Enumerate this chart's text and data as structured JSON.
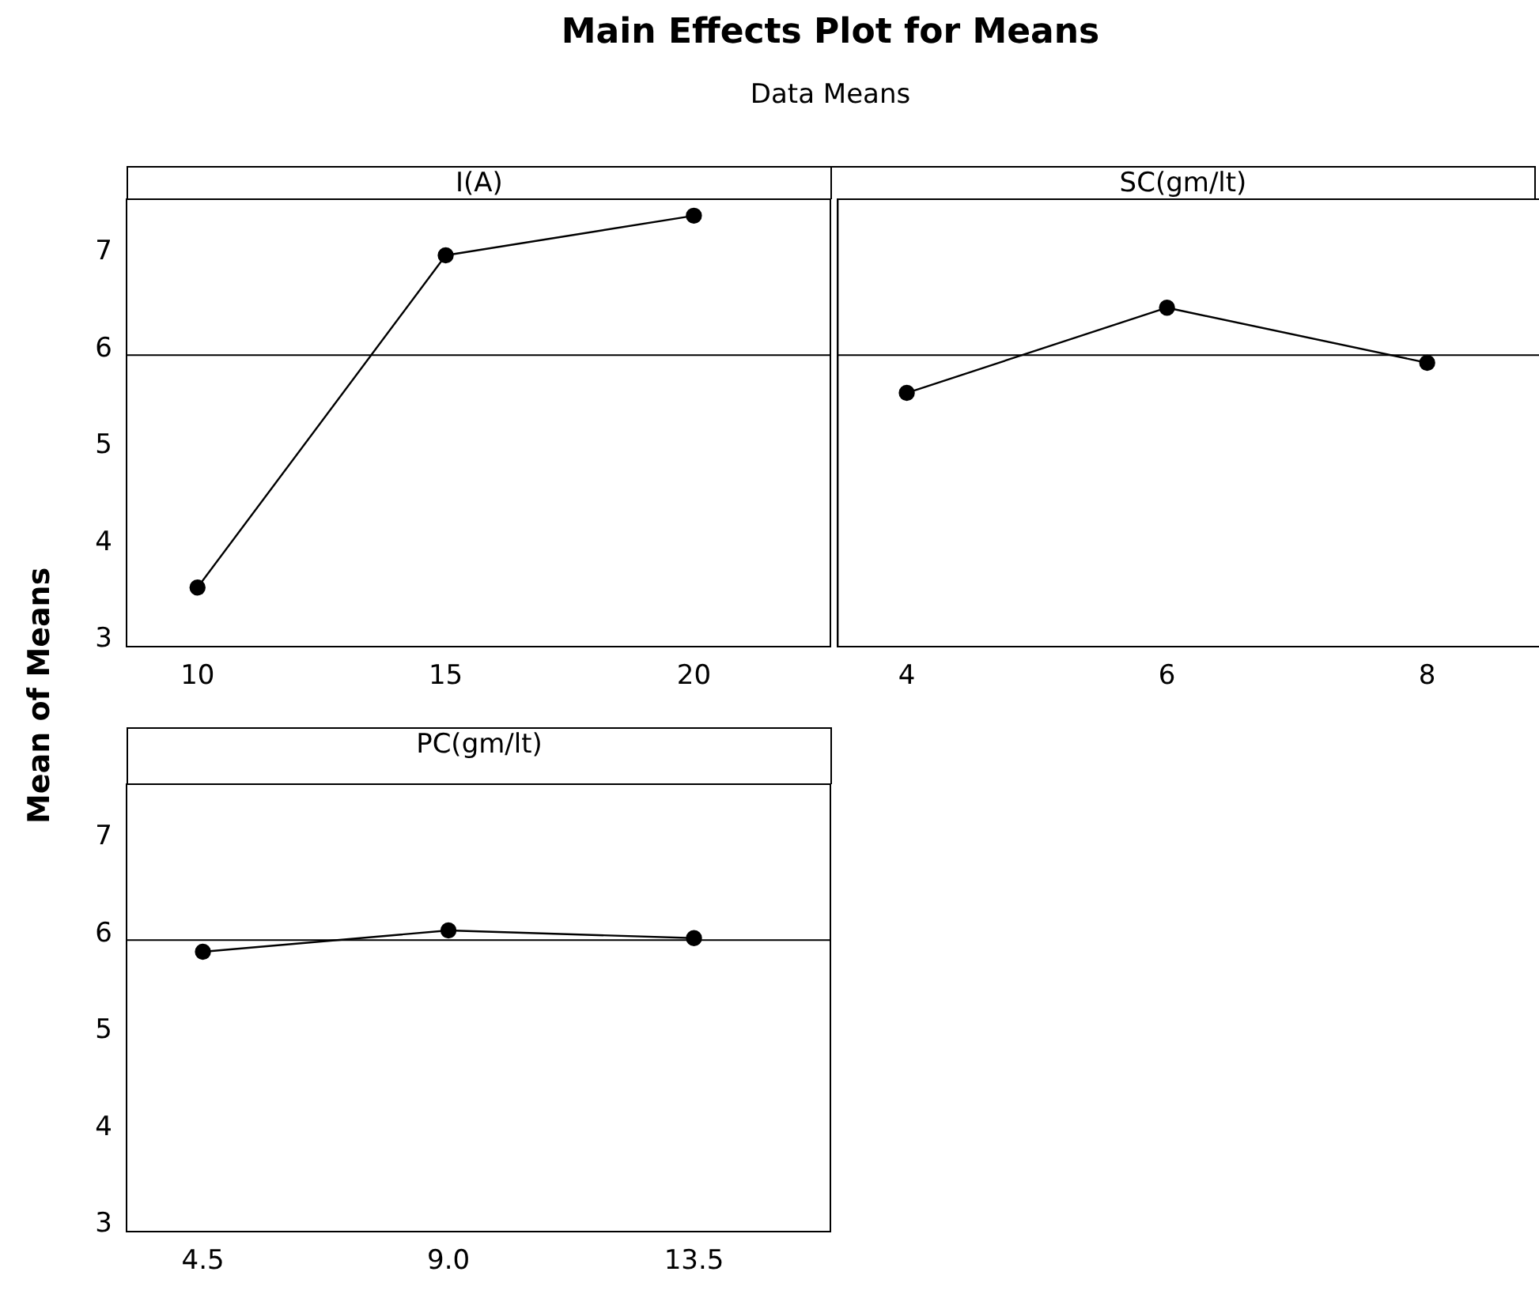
{
  "chart_data": [
    {
      "type": "line",
      "title": "I(A)",
      "annotations": [
        "Main Effects Plot for Means",
        "Data Means"
      ],
      "ylabel": "Mean of Means",
      "x": [
        10,
        15,
        20
      ],
      "xlim": [
        8.57,
        22.75
      ],
      "xticks": [
        10,
        15,
        20
      ],
      "ylim": [
        2.93,
        7.55
      ],
      "yticks": [
        3,
        4,
        5,
        6,
        7
      ],
      "grid": false,
      "legend": false,
      "marker": "circle",
      "line_style": "solid",
      "series": [
        {
          "color": "#000000",
          "values": [
            3.54,
            6.97,
            7.38
          ]
        }
      ],
      "ref_lines": [
        {
          "axis": "y",
          "value": 5.94,
          "color": "#000000"
        }
      ]
    },
    {
      "type": "line",
      "title": "SC(gm/lt)",
      "x": [
        4,
        6,
        8
      ],
      "xlim": [
        3.47,
        8.88
      ],
      "xticks": [
        4,
        6,
        8
      ],
      "ylim": [
        2.93,
        7.55
      ],
      "yticks": [
        3,
        4,
        5,
        6,
        7
      ],
      "tick_labels": "x",
      "grid": false,
      "legend": false,
      "marker": "circle",
      "line_style": "solid",
      "series": [
        {
          "color": "#000000",
          "values": [
            5.55,
            6.43,
            5.86
          ]
        }
      ],
      "ref_lines": [
        {
          "axis": "y",
          "value": 5.94,
          "color": "#000000"
        }
      ]
    },
    {
      "type": "line",
      "title": "PC(gm/lt)",
      "x": [
        4.5,
        9,
        13.5
      ],
      "xlim": [
        3.1,
        16.0
      ],
      "xticks": [
        4.5,
        {
          "value": 9,
          "label": "9.0"
        },
        13.5
      ],
      "ylim": [
        2.93,
        7.55
      ],
      "yticks": [
        3,
        4,
        5,
        6,
        7
      ],
      "grid": false,
      "legend": false,
      "marker": "circle",
      "line_style": "solid",
      "series": [
        {
          "color": "#000000",
          "values": [
            5.82,
            6.04,
            5.96
          ]
        }
      ],
      "ref_lines": [
        {
          "axis": "y",
          "value": 5.94,
          "color": "#000000"
        }
      ]
    }
  ]
}
